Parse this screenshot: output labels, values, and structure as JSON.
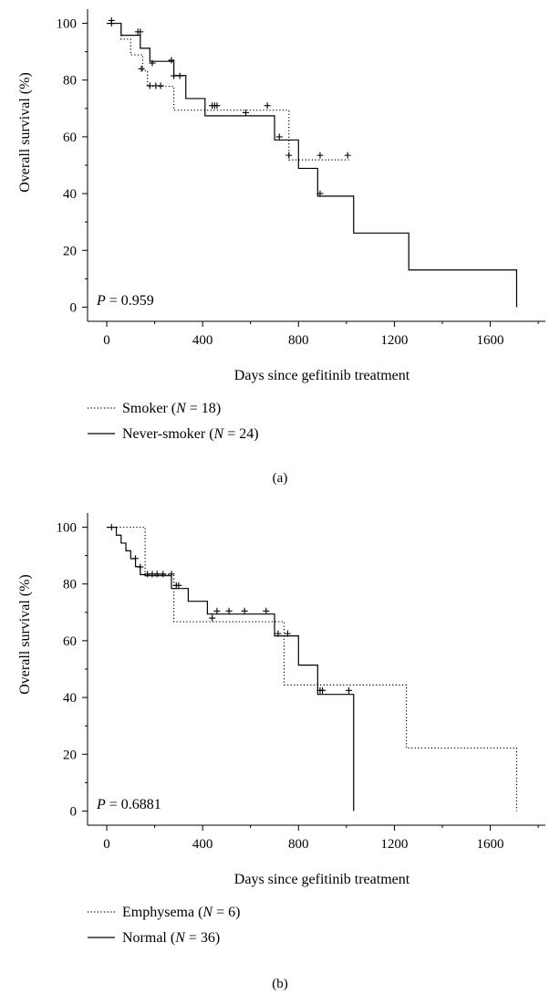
{
  "chart_data": [
    {
      "type": "line",
      "panel_label": "(a)",
      "xlabel": "Days since gefitinib treatment",
      "ylabel": "Overall survival (%)",
      "xlim": [
        -80,
        1830
      ],
      "ylim": [
        -5,
        105
      ],
      "xticks": [
        0,
        400,
        800,
        1200,
        1600
      ],
      "yticks": [
        0,
        20,
        40,
        60,
        80,
        100
      ],
      "annotation": {
        "italic": "P",
        "rest": " = 0.959"
      },
      "legend_position": "below-left",
      "series": [
        {
          "name": "Smoker (N = 18)",
          "label_parts": [
            "Smoker",
            "N",
            " = 18"
          ],
          "style": "dotted",
          "x": [
            0,
            60,
            100,
            150,
            170,
            280,
            760,
            1010
          ],
          "y": [
            100,
            94.4,
            88.9,
            83.3,
            77.8,
            69.4,
            51.9,
            51.9
          ],
          "censors": [
            [
              20,
              100
            ],
            [
              130,
              97
            ],
            [
              145,
              84
            ],
            [
              190,
              86
            ],
            [
              180,
              78
            ],
            [
              205,
              78
            ],
            [
              225,
              78
            ],
            [
              270,
              87
            ],
            [
              450,
              71
            ],
            [
              580,
              68.5
            ],
            [
              670,
              71
            ],
            [
              760,
              53.5
            ],
            [
              890,
              53.5
            ],
            [
              1005,
              53.5
            ]
          ]
        },
        {
          "name": "Never-smoker (N = 24)",
          "label_parts": [
            "Never-smoker",
            "N",
            " = 24"
          ],
          "style": "solid",
          "x": [
            0,
            60,
            140,
            180,
            280,
            330,
            410,
            700,
            800,
            880,
            1030,
            1260,
            1710
          ],
          "y": [
            100,
            95.8,
            91.2,
            86.6,
            81.6,
            73.5,
            67.4,
            58.9,
            48.9,
            39.1,
            26.1,
            13.1,
            0
          ],
          "censors": [
            [
              20,
              101
            ],
            [
              140,
              97
            ],
            [
              280,
              81.5
            ],
            [
              305,
              81.5
            ],
            [
              440,
              71
            ],
            [
              460,
              71
            ],
            [
              720,
              60
            ],
            [
              890,
              40
            ]
          ]
        }
      ]
    },
    {
      "type": "line",
      "panel_label": "(b)",
      "xlabel": "Days since gefitinib treatment",
      "ylabel": "Overall survival (%)",
      "xlim": [
        -80,
        1830
      ],
      "ylim": [
        -5,
        105
      ],
      "xticks": [
        0,
        400,
        800,
        1200,
        1600
      ],
      "yticks": [
        0,
        20,
        40,
        60,
        80,
        100
      ],
      "annotation": {
        "italic": "P",
        "rest": " = 0.6881"
      },
      "legend_position": "below-left",
      "series": [
        {
          "name": "Emphysema (N = 6)",
          "label_parts": [
            "Emphysema",
            "N",
            " = 6"
          ],
          "style": "dotted",
          "x": [
            0,
            160,
            280,
            740,
            1250,
            1710
          ],
          "y": [
            100,
            83.3,
            66.7,
            44.4,
            22.2,
            0
          ],
          "censors": []
        },
        {
          "name": "Normal (N = 36)",
          "label_parts": [
            "Normal",
            "N",
            " = 36"
          ],
          "style": "solid",
          "x": [
            0,
            40,
            60,
            80,
            100,
            120,
            140,
            160,
            270,
            340,
            420,
            700,
            800,
            880,
            1030
          ],
          "y": [
            100,
            97.2,
            94.4,
            91.7,
            88.9,
            86.1,
            83.3,
            82.9,
            78.4,
            73.9,
            69.4,
            61.7,
            51.4,
            41.1,
            0
          ],
          "censors": [
            [
              20,
              100
            ],
            [
              120,
              89
            ],
            [
              140,
              86
            ],
            [
              170,
              83.5
            ],
            [
              190,
              83.5
            ],
            [
              210,
              83.5
            ],
            [
              235,
              83.5
            ],
            [
              270,
              83.5
            ],
            [
              290,
              79.5
            ],
            [
              300,
              79.5
            ],
            [
              440,
              68
            ],
            [
              460,
              70.5
            ],
            [
              510,
              70.5
            ],
            [
              575,
              70.5
            ],
            [
              665,
              70.5
            ],
            [
              715,
              62.5
            ],
            [
              755,
              62.5
            ],
            [
              890,
              42.5
            ],
            [
              900,
              42.5
            ],
            [
              1010,
              42.5
            ]
          ]
        }
      ]
    }
  ]
}
